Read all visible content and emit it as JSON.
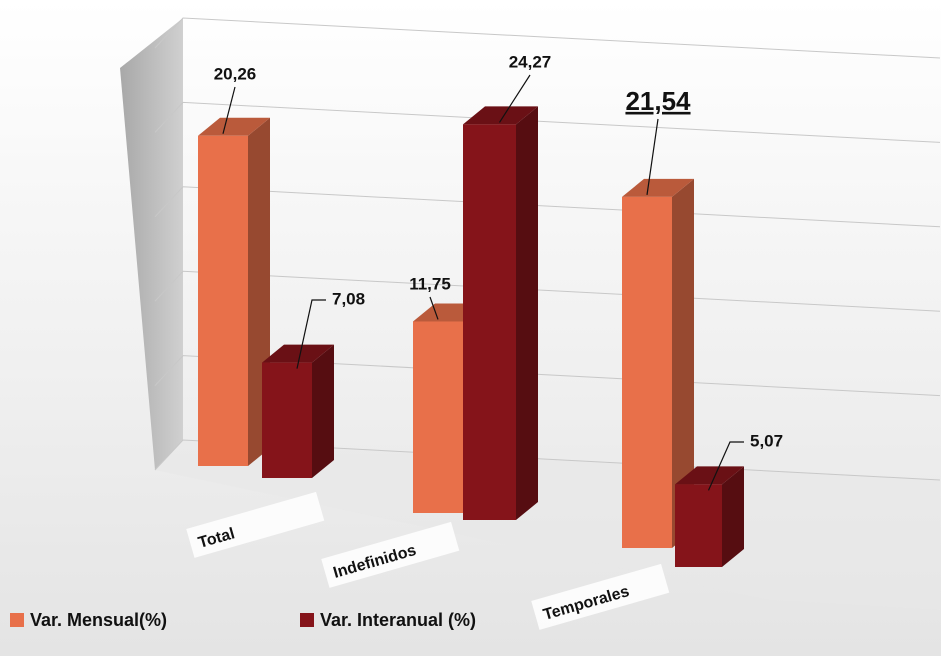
{
  "chart_data": {
    "type": "bar3d",
    "categories": [
      "Total",
      "Indefinidos",
      "Temporales"
    ],
    "series": [
      {
        "name": "Var. Mensual(%)",
        "color": "#e8704a",
        "values": [
          20.26,
          11.75,
          21.54
        ],
        "value_labels": [
          "20,26",
          "11,75",
          "21,54"
        ]
      },
      {
        "name": "Var. Interanual (%)",
        "color": "#85141a",
        "values": [
          7.08,
          24.27,
          5.07
        ],
        "value_labels": [
          "7,08",
          "24,27",
          "5,07"
        ]
      }
    ],
    "ylim": [
      0,
      25
    ],
    "yticks": [
      0,
      5,
      10,
      15,
      20,
      25
    ],
    "grid": true,
    "legend": "bottom-left"
  }
}
